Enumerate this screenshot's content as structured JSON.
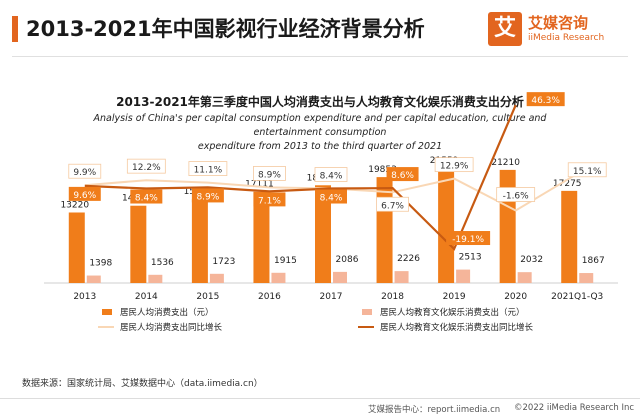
{
  "header": {
    "title": "2013-2021年中国影视行业经济背景分析",
    "logo_mark": "艾",
    "logo_cn": "艾媒咨询",
    "logo_en": "iiMedia Research",
    "accent_color": "#e2651f"
  },
  "chart_data": {
    "type": "bar",
    "title": "2013-2021年第三季度中国人均消费支出与人均教育文化娱乐消费支出分析",
    "subtitle_lines": [
      "Analysis of China's per capital consumption expenditure and per capital education, culture and entertainment consumption",
      "expenditure from 2013 to the third quarter of 2021"
    ],
    "categories": [
      "2013",
      "2014",
      "2015",
      "2016",
      "2017",
      "2018",
      "2019",
      "2020",
      "2021Q1-Q3"
    ],
    "series": [
      {
        "name": "居民人均消费支出（元）",
        "kind": "bar",
        "color": "#f07d1a",
        "values": [
          13220,
          14491,
          15712,
          17111,
          18322,
          19853,
          21559,
          21210,
          17275
        ]
      },
      {
        "name": "居民人均教育文化娱乐消费支出（元）",
        "kind": "bar",
        "color": "#f5b59a",
        "values": [
          1398,
          1536,
          1723,
          1915,
          2086,
          2226,
          2513,
          2032,
          1867
        ]
      },
      {
        "name": "居民人均消费支出同比增长",
        "kind": "line",
        "color": "#f9d7b5",
        "values": [
          9.9,
          12.2,
          11.1,
          8.9,
          8.4,
          6.7,
          12.9,
          -1.6,
          15.1
        ]
      },
      {
        "name": "居民人均教育文化娱乐消费支出同比增长",
        "kind": "line",
        "color": "#c75a12",
        "values": [
          9.6,
          8.4,
          8.9,
          7.1,
          8.4,
          8.6,
          -19.1,
          46.3,
          null
        ]
      }
    ],
    "data_labels": {
      "bar1": [
        "13220",
        "14491",
        "15712",
        "17111",
        "18322",
        "19853",
        "21559",
        "21210",
        "17275"
      ],
      "bar2": [
        "1398",
        "1536",
        "1723",
        "1915",
        "2086",
        "2226",
        "2513",
        "2032",
        "1867"
      ],
      "line1": [
        "9.9%",
        "12.2%",
        "11.1%",
        "8.9%",
        "8.4%",
        "6.7%",
        "12.9%",
        "-1.6%",
        "15.1%"
      ],
      "line2": [
        "9.6%",
        "8.4%",
        "8.9%",
        "7.1%",
        "8.4%",
        "8.6%",
        "-19.1%",
        "46.3%",
        ""
      ]
    },
    "grid": false,
    "legend_position": "bottom"
  },
  "source": "数据来源：国家统计局、艾媒数据中心（data.iimedia.cn）",
  "footer": {
    "left": "艾媒报告中心：report.iimedia.cn",
    "right": "©2022  iiMedia Research  Inc"
  }
}
